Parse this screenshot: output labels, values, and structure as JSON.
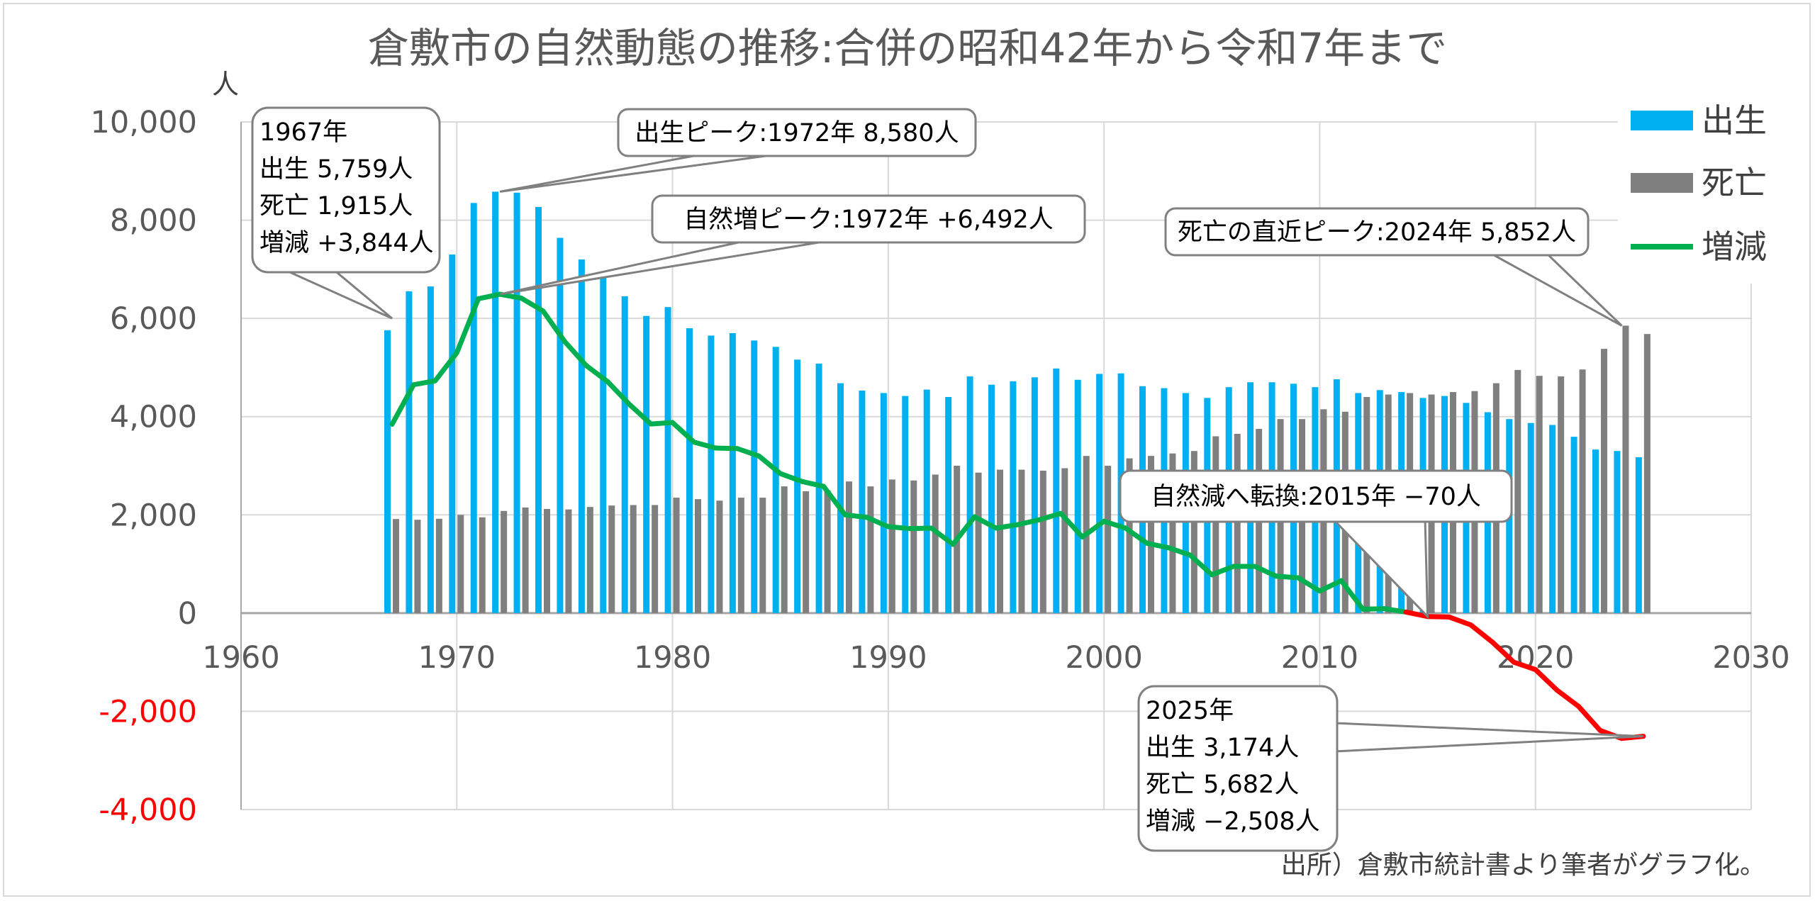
{
  "chart_data": {
    "type": "bar",
    "title": "倉敷市の自然動態の推移:合併の昭和42年から令和7年まで",
    "ylabel": "人",
    "xlim": [
      1960,
      2030
    ],
    "ylim": [
      -4000,
      10000
    ],
    "x_ticks": [
      "1960",
      "1970",
      "1980",
      "1990",
      "2000",
      "2010",
      "2020",
      "2030"
    ],
    "y_ticks": [
      {
        "value": 10000,
        "label": "10,000"
      },
      {
        "value": 8000,
        "label": "8,000"
      },
      {
        "value": 6000,
        "label": "6,000"
      },
      {
        "value": 4000,
        "label": "4,000"
      },
      {
        "value": 2000,
        "label": "2,000"
      },
      {
        "value": 0,
        "label": "0"
      },
      {
        "value": -2000,
        "label": "-2,000"
      },
      {
        "value": -4000,
        "label": "-4,000"
      }
    ],
    "grid": true,
    "legend_position": "top-right",
    "x": [
      1967,
      1968,
      1969,
      1970,
      1971,
      1972,
      1973,
      1974,
      1975,
      1976,
      1977,
      1978,
      1979,
      1980,
      1981,
      1982,
      1983,
      1984,
      1985,
      1986,
      1987,
      1988,
      1989,
      1990,
      1991,
      1992,
      1993,
      1994,
      1995,
      1996,
      1997,
      1998,
      1999,
      2000,
      2001,
      2002,
      2003,
      2004,
      2005,
      2006,
      2007,
      2008,
      2009,
      2010,
      2011,
      2012,
      2013,
      2014,
      2015,
      2016,
      2017,
      2018,
      2019,
      2020,
      2021,
      2022,
      2023,
      2024,
      2025
    ],
    "series": [
      {
        "name": "出生",
        "type": "bar",
        "color": "#00b0f0",
        "values": [
          5759,
          6550,
          6650,
          7300,
          8350,
          8580,
          8560,
          8270,
          7640,
          7200,
          6900,
          6450,
          6050,
          6230,
          5800,
          5650,
          5700,
          5550,
          5420,
          5160,
          5080,
          4680,
          4530,
          4480,
          4420,
          4550,
          4400,
          4820,
          4650,
          4720,
          4800,
          4980,
          4750,
          4870,
          4880,
          4620,
          4580,
          4480,
          4380,
          4600,
          4700,
          4700,
          4670,
          4600,
          4760,
          4480,
          4540,
          4500,
          4380,
          4420,
          4280,
          4090,
          3950,
          3870,
          3830,
          3590,
          3330,
          3300,
          3174
        ]
      },
      {
        "name": "死亡",
        "type": "bar",
        "color": "#7f7f7f",
        "values": [
          1915,
          1900,
          1920,
          2000,
          1950,
          2080,
          2150,
          2120,
          2110,
          2160,
          2190,
          2200,
          2200,
          2350,
          2320,
          2290,
          2350,
          2350,
          2580,
          2480,
          2500,
          2680,
          2580,
          2720,
          2700,
          2820,
          3000,
          2860,
          2920,
          2920,
          2900,
          2950,
          3200,
          3000,
          3150,
          3200,
          3250,
          3300,
          3600,
          3650,
          3750,
          3950,
          3950,
          4150,
          4100,
          4400,
          4450,
          4480,
          4450,
          4500,
          4520,
          4680,
          4950,
          4830,
          4820,
          4960,
          5380,
          5852,
          5682
        ]
      },
      {
        "name": "増減",
        "type": "line",
        "color": "#00b050",
        "negative_color": "#ff0000",
        "values": [
          3844,
          4650,
          4730,
          5300,
          6400,
          6492,
          6410,
          6150,
          5530,
          5040,
          4710,
          4250,
          3850,
          3880,
          3480,
          3360,
          3350,
          3200,
          2840,
          2680,
          2580,
          2000,
          1950,
          1760,
          1720,
          1730,
          1400,
          1960,
          1730,
          1800,
          1900,
          2030,
          1550,
          1870,
          1730,
          1420,
          1330,
          1180,
          780,
          950,
          950,
          750,
          720,
          450,
          660,
          80,
          90,
          20,
          -70,
          -80,
          -240,
          -590,
          -1000,
          -1150,
          -1570,
          -1900,
          -2390,
          -2552,
          -2508
        ]
      }
    ],
    "annotations": [
      {
        "id": "ann-1967",
        "lines": [
          "1967年",
          "出生 5,759人",
          "死亡 1,915人",
          "増減 +3,844人"
        ]
      },
      {
        "id": "ann-birth-peak",
        "lines": [
          "出生ピーク:1972年 8,580人"
        ]
      },
      {
        "id": "ann-natural-peak",
        "lines": [
          "自然増ピーク:1972年 +6,492人"
        ]
      },
      {
        "id": "ann-death-peak",
        "lines": [
          "死亡の直近ピーク:2024年 5,852人"
        ]
      },
      {
        "id": "ann-switch",
        "lines": [
          "自然減へ転換:2015年 −70人"
        ]
      },
      {
        "id": "ann-2025",
        "lines": [
          "2025年",
          "出生 3,174人",
          "死亡 5,682人",
          "増減 −2,508人"
        ]
      }
    ]
  },
  "source": "出所）倉敷市統計書より筆者がグラフ化。"
}
